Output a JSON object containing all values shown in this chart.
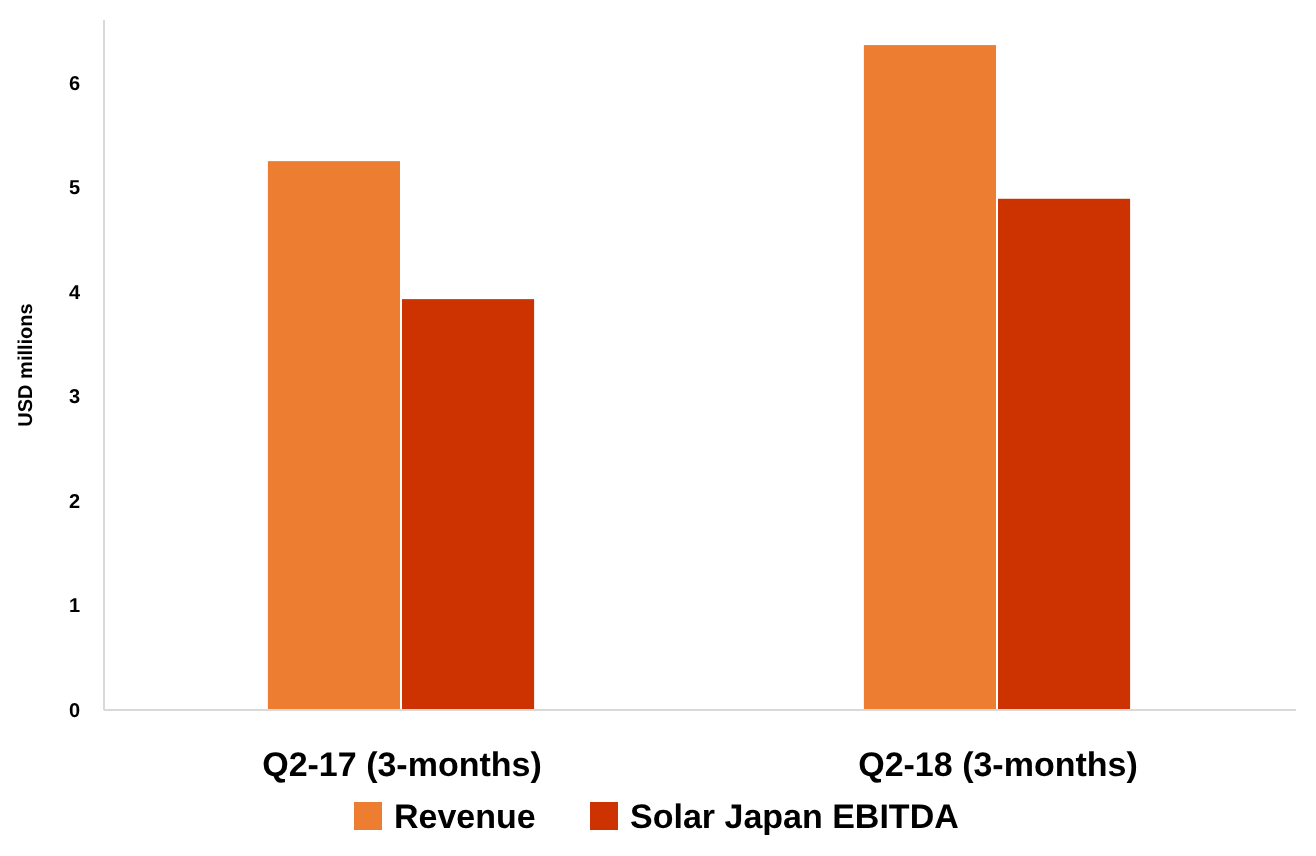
{
  "chart_data": {
    "type": "bar",
    "ylabel": "USD millions",
    "categories": [
      "Q2-17 (3-months)",
      "Q2-18 (3-months)"
    ],
    "series": [
      {
        "name": "Revenue",
        "color": "#ed7d31",
        "values": [
          5.25,
          6.36
        ]
      },
      {
        "name": "Solar Japan EBITDA",
        "color": "#cc3300",
        "values": [
          3.93,
          4.89
        ]
      }
    ],
    "ylim": [
      0,
      6.6
    ],
    "yticks": [
      0,
      1,
      2,
      3,
      4,
      5,
      6
    ],
    "grid": false,
    "legend": "bottom"
  }
}
